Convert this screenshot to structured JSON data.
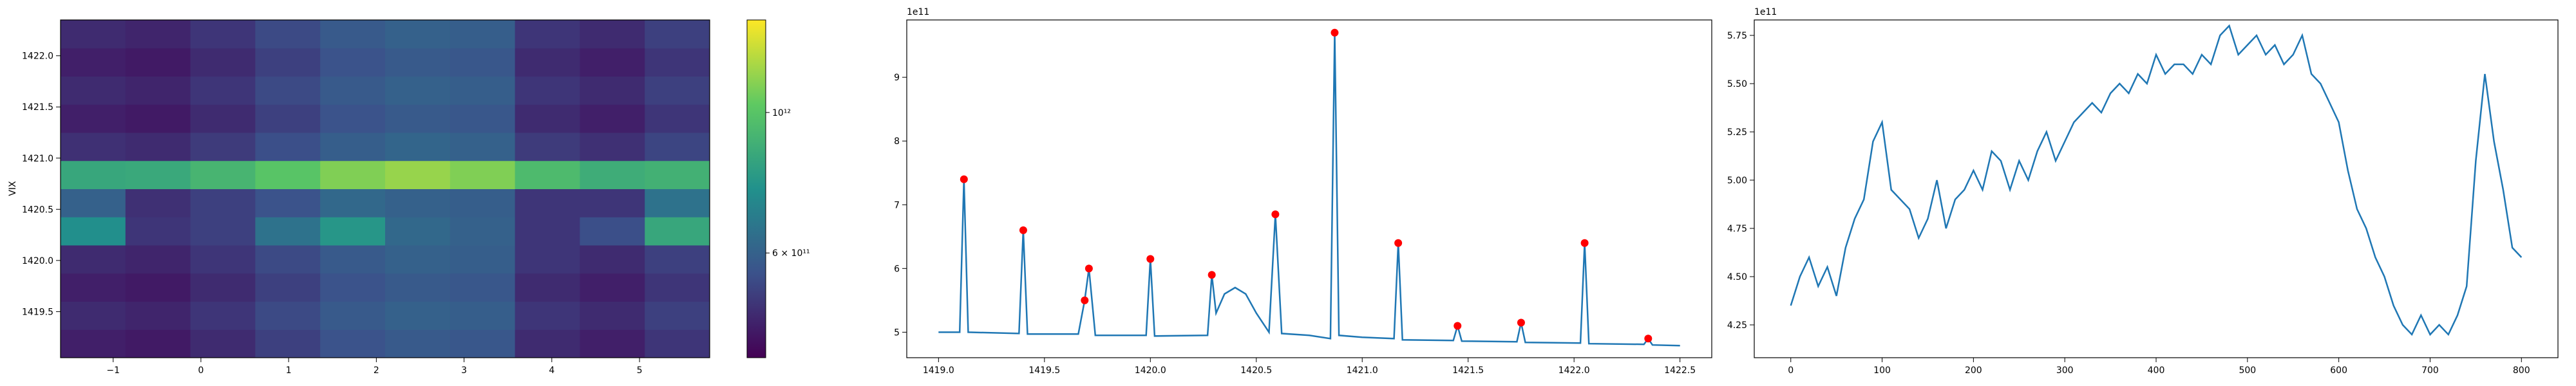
{
  "chart_data": [
    {
      "type": "heatmap",
      "ylabel": "VIX",
      "x_edges": [
        -1.6,
        -0.86,
        -0.12,
        0.62,
        1.36,
        2.1,
        2.84,
        3.58,
        4.32,
        5.06,
        5.8
      ],
      "y_edges": [
        1419.05,
        1419.325,
        1419.6,
        1419.875,
        1420.15,
        1420.425,
        1420.7,
        1420.975,
        1421.25,
        1421.525,
        1421.8,
        1422.075,
        1422.35
      ],
      "z": [
        [
          460000000000.0,
          450000000000.0,
          480000000000.0,
          520000000000.0,
          560000000000.0,
          580000000000.0,
          570000000000.0,
          480000000000.0,
          460000000000.0,
          500000000000.0
        ],
        [
          480000000000.0,
          470000000000.0,
          500000000000.0,
          540000000000.0,
          580000000000.0,
          600000000000.0,
          590000000000.0,
          500000000000.0,
          480000000000.0,
          520000000000.0
        ],
        [
          460000000000.0,
          450000000000.0,
          480000000000.0,
          520000000000.0,
          560000000000.0,
          580000000000.0,
          570000000000.0,
          480000000000.0,
          460000000000.0,
          500000000000.0
        ],
        [
          480000000000.0,
          470000000000.0,
          500000000000.0,
          540000000000.0,
          580000000000.0,
          600000000000.0,
          590000000000.0,
          500000000000.0,
          480000000000.0,
          520000000000.0
        ],
        [
          750000000000.0,
          500000000000.0,
          520000000000.0,
          650000000000.0,
          780000000000.0,
          620000000000.0,
          600000000000.0,
          500000000000.0,
          550000000000.0,
          850000000000.0
        ],
        [
          600000000000.0,
          490000000000.0,
          520000000000.0,
          560000000000.0,
          620000000000.0,
          600000000000.0,
          590000000000.0,
          500000000000.0,
          500000000000.0,
          650000000000.0
        ],
        [
          850000000000.0,
          860000000000.0,
          920000000000.0,
          1000000000000.0,
          1100000000000.0,
          1150000000000.0,
          1100000000000.0,
          950000000000.0,
          880000000000.0,
          900000000000.0
        ],
        [
          490000000000.0,
          480000000000.0,
          510000000000.0,
          550000000000.0,
          590000000000.0,
          610000000000.0,
          600000000000.0,
          510000000000.0,
          490000000000.0,
          530000000000.0
        ],
        [
          460000000000.0,
          450000000000.0,
          480000000000.0,
          520000000000.0,
          560000000000.0,
          580000000000.0,
          570000000000.0,
          480000000000.0,
          460000000000.0,
          500000000000.0
        ],
        [
          480000000000.0,
          470000000000.0,
          500000000000.0,
          540000000000.0,
          580000000000.0,
          600000000000.0,
          590000000000.0,
          500000000000.0,
          480000000000.0,
          520000000000.0
        ],
        [
          460000000000.0,
          450000000000.0,
          480000000000.0,
          520000000000.0,
          560000000000.0,
          580000000000.0,
          570000000000.0,
          480000000000.0,
          460000000000.0,
          500000000000.0
        ],
        [
          480000000000.0,
          470000000000.0,
          500000000000.0,
          540000000000.0,
          580000000000.0,
          600000000000.0,
          590000000000.0,
          500000000000.0,
          480000000000.0,
          520000000000.0
        ]
      ],
      "xlim": [
        -1.6,
        5.8
      ],
      "ylim": [
        1419.05,
        1422.35
      ],
      "xticks": [
        {
          "value": -1,
          "label": "−1"
        },
        0,
        1,
        2,
        3,
        4,
        5
      ],
      "yticks": [
        1419.5,
        {
          "value": 1420,
          "label": "1420.0"
        },
        1420.5,
        {
          "value": 1421,
          "label": "1421.0"
        },
        1421.5,
        {
          "value": 1422,
          "label": "1422.0"
        }
      ],
      "colormap": "viridis",
      "colorbar": {
        "scale": "log",
        "lim": [
          410000000000.0,
          1400000000000.0
        ],
        "ticks": [
          {
            "value": 600000000000.0,
            "label": "6 × 10¹¹"
          },
          {
            "value": 1000000000000.0,
            "label": "10¹²"
          }
        ]
      }
    },
    {
      "type": "line",
      "offset_label": "1e11",
      "series": [
        {
          "color": "#1f77b4",
          "x": [
            1419.0,
            1419.1,
            1419.12,
            1419.14,
            1419.38,
            1419.4,
            1419.42,
            1419.66,
            1419.69,
            1419.71,
            1419.74,
            1419.98,
            1420.0,
            1420.02,
            1420.27,
            1420.29,
            1420.31,
            1420.35,
            1420.4,
            1420.45,
            1420.5,
            1420.56,
            1420.59,
            1420.62,
            1420.75,
            1420.85,
            1420.87,
            1420.89,
            1421.0,
            1421.15,
            1421.17,
            1421.19,
            1421.43,
            1421.45,
            1421.47,
            1421.73,
            1421.75,
            1421.77,
            1422.03,
            1422.05,
            1422.07,
            1422.33,
            1422.35,
            1422.37,
            1422.5
          ],
          "values": [
            5.0,
            5.0,
            7.4,
            5.0,
            4.98,
            6.6,
            4.97,
            4.97,
            5.5,
            6.0,
            4.95,
            4.95,
            6.15,
            4.94,
            4.95,
            5.9,
            5.3,
            5.6,
            5.7,
            5.6,
            5.3,
            5.0,
            6.85,
            4.98,
            4.95,
            4.9,
            9.7,
            4.95,
            4.92,
            4.9,
            6.4,
            4.88,
            4.87,
            5.1,
            4.86,
            4.85,
            5.15,
            4.84,
            4.83,
            6.4,
            4.82,
            4.81,
            4.9,
            4.8,
            4.79
          ]
        },
        {
          "color": "#ff0000",
          "marker": "o",
          "x": [
            1419.12,
            1419.4,
            1419.69,
            1419.71,
            1420.0,
            1420.29,
            1420.59,
            1420.87,
            1421.17,
            1421.45,
            1421.75,
            1422.05,
            1422.35
          ],
          "values": [
            7.4,
            6.6,
            5.5,
            6.0,
            6.15,
            5.9,
            6.85,
            9.7,
            6.4,
            5.1,
            5.15,
            6.4,
            4.9
          ]
        }
      ],
      "xlim": [
        1418.85,
        1422.65
      ],
      "ylim": [
        4.6,
        9.9
      ],
      "xticks": [
        {
          "value": 1419,
          "label": "1419.0"
        },
        1419.5,
        {
          "value": 1420,
          "label": "1420.0"
        },
        1420.5,
        {
          "value": 1421,
          "label": "1421.0"
        },
        1421.5,
        {
          "value": 1422,
          "label": "1422.0"
        },
        1422.5
      ],
      "yticks": [
        5,
        6,
        7,
        8,
        9
      ]
    },
    {
      "type": "line",
      "offset_label": "1e11",
      "series": [
        {
          "color": "#1f77b4",
          "x": [
            0,
            10,
            20,
            30,
            40,
            50,
            60,
            70,
            80,
            90,
            100,
            110,
            120,
            130,
            140,
            150,
            160,
            170,
            180,
            190,
            200,
            210,
            220,
            230,
            240,
            250,
            260,
            270,
            280,
            290,
            300,
            310,
            320,
            330,
            340,
            350,
            360,
            370,
            380,
            390,
            400,
            410,
            420,
            430,
            440,
            450,
            460,
            470,
            480,
            490,
            500,
            510,
            520,
            530,
            540,
            550,
            560,
            570,
            580,
            590,
            600,
            610,
            620,
            630,
            640,
            650,
            660,
            670,
            680,
            690,
            700,
            710,
            720,
            730,
            740,
            750,
            760,
            770,
            780,
            790,
            800
          ],
          "values": [
            4.35,
            4.5,
            4.6,
            4.45,
            4.55,
            4.4,
            4.65,
            4.8,
            4.9,
            5.2,
            5.3,
            4.95,
            4.9,
            4.85,
            4.7,
            4.8,
            5.0,
            4.75,
            4.9,
            4.95,
            5.05,
            4.95,
            5.15,
            5.1,
            4.95,
            5.1,
            5.0,
            5.15,
            5.25,
            5.1,
            5.2,
            5.3,
            5.35,
            5.4,
            5.35,
            5.45,
            5.5,
            5.45,
            5.55,
            5.5,
            5.65,
            5.55,
            5.6,
            5.6,
            5.55,
            5.65,
            5.6,
            5.75,
            5.8,
            5.65,
            5.7,
            5.75,
            5.65,
            5.7,
            5.6,
            5.65,
            5.75,
            5.55,
            5.5,
            5.4,
            5.3,
            5.05,
            4.85,
            4.75,
            4.6,
            4.5,
            4.35,
            4.25,
            4.2,
            4.3,
            4.2,
            4.25,
            4.2,
            4.3,
            4.45,
            5.1,
            5.55,
            5.2,
            4.95,
            4.65,
            4.6
          ]
        }
      ],
      "xlim": [
        -40,
        840
      ],
      "ylim": [
        4.08,
        5.83
      ],
      "xticks": [
        0,
        100,
        200,
        300,
        400,
        500,
        600,
        700,
        800
      ],
      "yticks": [
        4.25,
        {
          "value": 4.5,
          "label": "4.50"
        },
        4.75,
        {
          "value": 5,
          "label": "5.00"
        },
        5.25,
        {
          "value": 5.5,
          "label": "5.50"
        },
        5.75
      ]
    }
  ]
}
